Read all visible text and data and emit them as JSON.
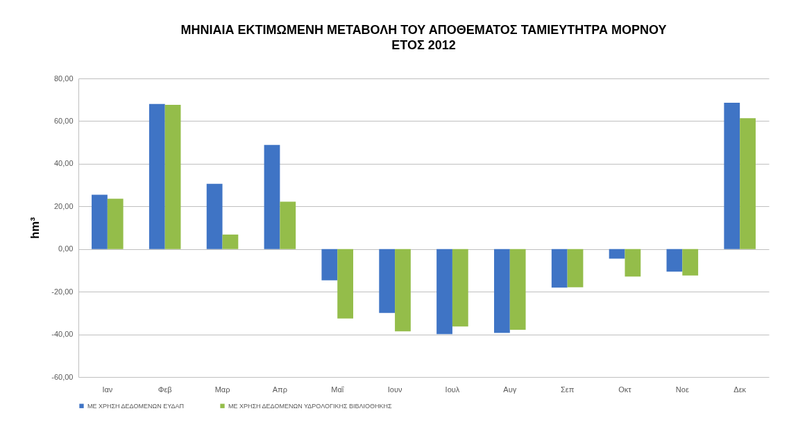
{
  "chart_data": {
    "type": "bar",
    "title": "ΜΗΝΙΑΙΑ ΕΚΤΙΜΩΜΕΝΗ ΜΕΤΑΒΟΛΗ ΤΟΥ ΑΠΟΘΕΜΑΤΟΣ ΤΑΜΙΕΥΤΗΤΡΑ ΜΟΡΝΟΥ\nΕΤΟΣ 2012",
    "ylabel": "hm³",
    "categories": [
      "Ιαν",
      "Φεβ",
      "Μαρ",
      "Απρ",
      "Μαΐ",
      "Ιουν",
      "Ιουλ",
      "Αυγ",
      "Σεπ",
      "Οκτ",
      "Νοε",
      "Δεκ"
    ],
    "series": [
      {
        "name": "ΜΕ ΧΡΗΣΗ ΔΕΔΟΜΕΝΩΝ ΕΥΔΑΠ",
        "color": "#3f74c5",
        "values": [
          25.5,
          68.0,
          30.6,
          48.8,
          -14.7,
          -30.0,
          -39.9,
          -39.3,
          -18.1,
          -4.5,
          -10.6,
          68.6
        ]
      },
      {
        "name": "ΜΕ ΧΡΗΣΗ ΔΕΔΟΜΕΝΩΝ ΥΔΡΟΛΟΓΙΚΗΣ ΒΙΒΛΙΟΘΗΚΗΣ",
        "color": "#94bd4a",
        "values": [
          23.6,
          67.6,
          6.8,
          22.2,
          -32.6,
          -38.6,
          -36.3,
          -37.9,
          -17.9,
          -12.9,
          -12.4,
          61.4
        ]
      }
    ],
    "ylim": [
      -60,
      80
    ],
    "yticks": [
      {
        "value": -60,
        "label": "-60,00"
      },
      {
        "value": -40,
        "label": "-40,00"
      },
      {
        "value": -20,
        "label": "-20,00"
      },
      {
        "value": 0,
        "label": "0,00"
      },
      {
        "value": 20,
        "label": "20,00"
      },
      {
        "value": 40,
        "label": "40,00"
      },
      {
        "value": 60,
        "label": "60,00"
      },
      {
        "value": 80,
        "label": "80,00"
      }
    ],
    "grid": "y",
    "legend": "bottom"
  }
}
